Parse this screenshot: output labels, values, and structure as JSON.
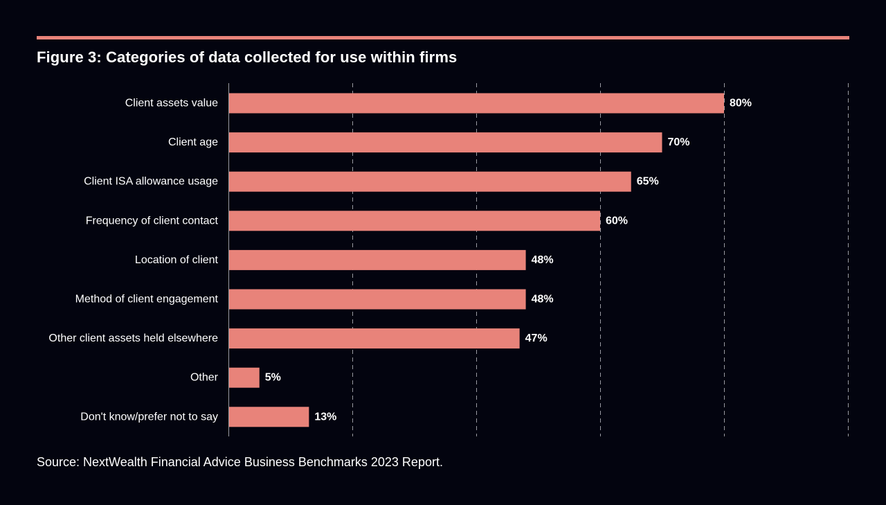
{
  "title": "Figure 3: Categories of data collected for use within firms",
  "source": "Source: NextWealth Financial Advice Business Benchmarks 2023 Report.",
  "colors": {
    "background": "#03040f",
    "bar": "#e8837a",
    "text": "#ffffff",
    "grid": "#9a9ba3"
  },
  "chart_data": {
    "type": "bar",
    "orientation": "horizontal",
    "categories": [
      "Client assets value",
      "Client age",
      "Client ISA allowance usage",
      "Frequency of client contact",
      "Location of client",
      "Method of client engagement",
      "Other client assets held elsewhere",
      "Other",
      "Don't know/prefer not to say"
    ],
    "values": [
      80,
      70,
      65,
      60,
      48,
      48,
      47,
      5,
      13
    ],
    "data_labels": [
      "80%",
      "70%",
      "65%",
      "60%",
      "48%",
      "48%",
      "47%",
      "5%",
      "13%"
    ],
    "xlim": [
      0,
      100
    ],
    "grid": true,
    "grid_style": "dashed vertical",
    "legend": "none"
  }
}
